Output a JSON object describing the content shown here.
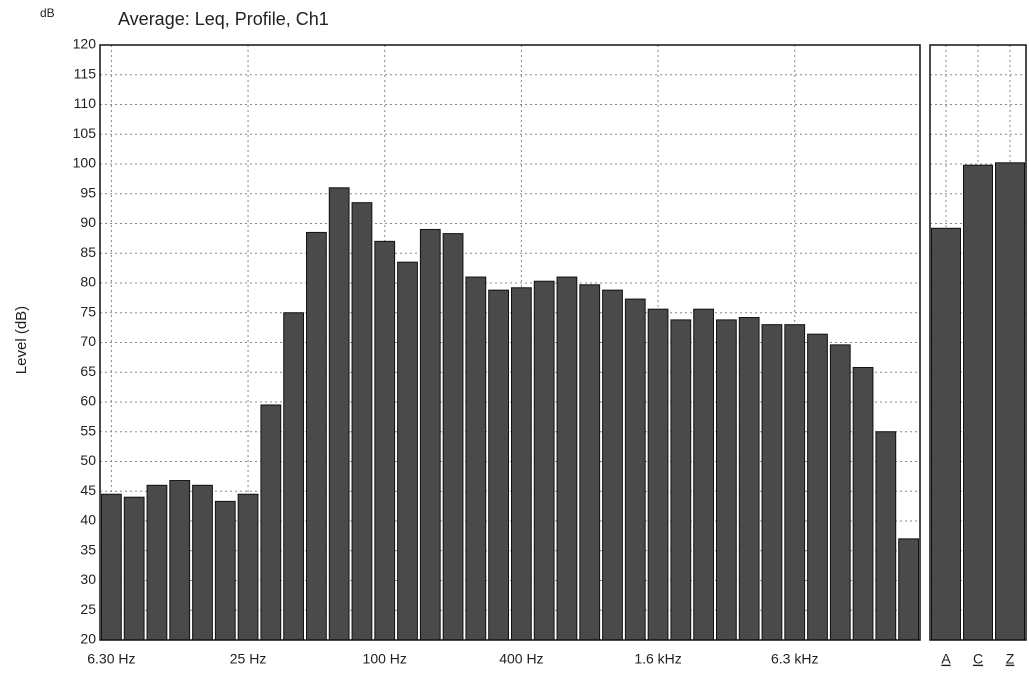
{
  "chart_data": [
    {
      "type": "bar",
      "title": "Average: Leq, Profile, Ch1",
      "unit_label": "dB",
      "y_label": "Level (dB)",
      "categories": [
        "6.30 Hz",
        null,
        null,
        null,
        null,
        null,
        "25 Hz",
        null,
        null,
        null,
        null,
        null,
        "100 Hz",
        null,
        null,
        null,
        null,
        null,
        "400 Hz",
        null,
        null,
        null,
        null,
        null,
        "1.6 kHz",
        null,
        null,
        null,
        null,
        null,
        "6.3 kHz",
        null,
        null,
        null,
        null,
        null
      ],
      "values": [
        44.5,
        44,
        46,
        46.8,
        46,
        43.3,
        44.5,
        59.5,
        75,
        88.5,
        96,
        93.5,
        87,
        83.5,
        89,
        88.3,
        81,
        78.8,
        79.2,
        80.3,
        81,
        79.7,
        78.8,
        77.3,
        75.6,
        73.8,
        75.6,
        73.8,
        74.2,
        73,
        73,
        71.4,
        69.6,
        65.8,
        55,
        37
      ],
      "color": "#4a4a4a",
      "ylim": [
        20,
        120
      ],
      "yticks": [
        20,
        25,
        30,
        35,
        40,
        45,
        50,
        55,
        60,
        65,
        70,
        75,
        80,
        85,
        90,
        95,
        100,
        105,
        110,
        115,
        120
      ],
      "grid": true
    },
    {
      "type": "bar",
      "categories": [
        "A",
        "C",
        "Z"
      ],
      "values": [
        89.2,
        99.8,
        100.2
      ],
      "color": "#4a4a4a",
      "ylim": [
        20,
        120
      ],
      "yticks": [
        20,
        25,
        30,
        35,
        40,
        45,
        50,
        55,
        60,
        65,
        70,
        75,
        80,
        85,
        90,
        95,
        100,
        105,
        110,
        115,
        120
      ],
      "grid": true
    }
  ]
}
